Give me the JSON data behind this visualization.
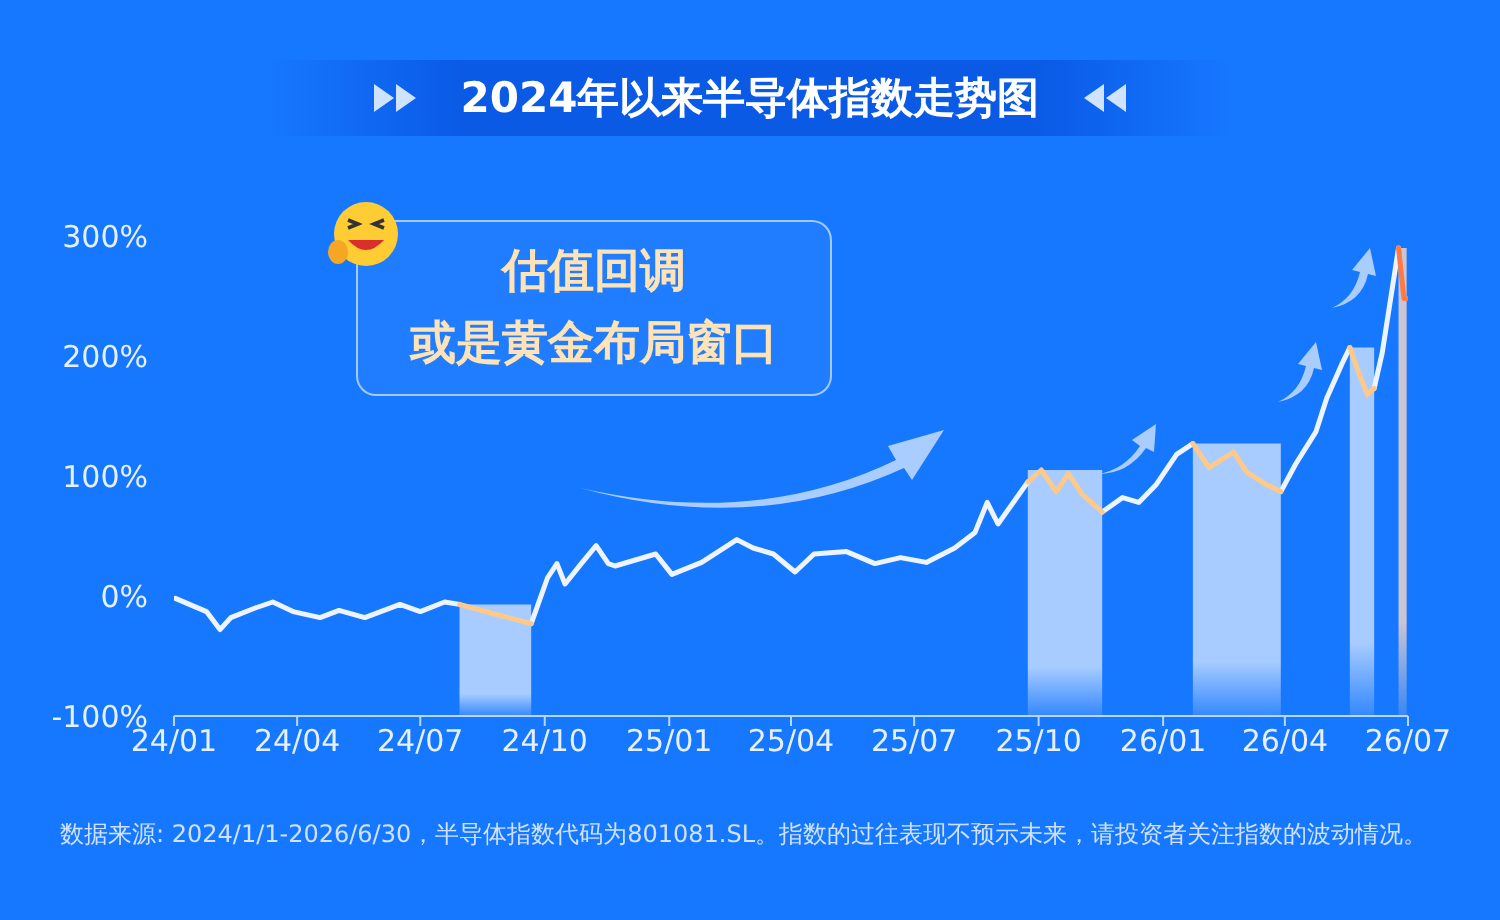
{
  "chart_data": {
    "type": "line",
    "title": "2024年以来半导体指数走势图",
    "annotations": [
      "估值回调",
      "或是黄金布局窗口",
      "数据来源: 2024/1/1-2026/6/30，半导体指数代码为801081.SL。指数的过往表现不预示未来，请投资者关注指数的波动情况。"
    ],
    "x": [
      "2024-01-02",
      "2024-01-25",
      "2024-02-04",
      "2024-02-12",
      "2024-03-01",
      "2024-03-14",
      "2024-03-29",
      "2024-04-18",
      "2024-05-02",
      "2024-05-21",
      "2024-06-16",
      "2024-07-01",
      "2024-07-19",
      "2024-07-30",
      "2024-08-25",
      "2024-09-21",
      "2024-10-03",
      "2024-10-10",
      "2024-10-16",
      "2024-10-28",
      "2024-11-08",
      "2024-11-17",
      "2024-11-22",
      "2024-12-22",
      "2025-01-03",
      "2025-01-25",
      "2025-02-20",
      "2025-03-04",
      "2025-03-19",
      "2025-04-04",
      "2025-04-18",
      "2025-05-12",
      "2025-06-02",
      "2025-06-21",
      "2025-07-10",
      "2025-07-31",
      "2025-08-15",
      "2025-08-24",
      "2025-09-01",
      "2025-09-23",
      "2025-10-03",
      "2025-10-14",
      "2025-10-23",
      "2025-11-02",
      "2025-11-17",
      "2025-12-02",
      "2025-12-14",
      "2025-12-27",
      "2026-01-11",
      "2026-01-23",
      "2026-02-04",
      "2026-02-22",
      "2026-03-04",
      "2026-03-18",
      "2026-03-29",
      "2026-04-09",
      "2026-04-24",
      "2026-05-02",
      "2026-05-13",
      "2026-05-19",
      "2026-05-27",
      "2026-06-01",
      "2026-06-06",
      "2026-06-12",
      "2026-06-16",
      "2026-06-24",
      "2026-06-28",
      "2026-06-30"
    ],
    "series": [
      {
        "color": "#eef4ff",
        "values": [
          -2,
          -13,
          -28,
          -18,
          -10,
          -5,
          -13,
          -18,
          -12,
          -18,
          -7,
          -13,
          -5,
          -7,
          null,
          -23,
          15,
          27,
          10,
          27,
          42,
          27,
          25,
          35,
          18,
          28,
          47,
          40,
          35,
          20,
          35,
          37,
          27,
          32,
          28,
          40,
          53,
          78,
          60,
          95,
          null,
          null,
          null,
          null,
          70,
          82,
          78,
          93,
          118,
          127,
          null,
          null,
          null,
          null,
          87,
          110,
          137,
          165,
          193,
          207,
          null,
          null,
          173,
          203,
          232,
          290,
          null,
          null
        ]
      },
      {
        "color": "#ffc98a",
        "values": [
          null,
          null,
          null,
          null,
          null,
          null,
          null,
          null,
          null,
          null,
          null,
          null,
          null,
          -7,
          -15,
          -23,
          null,
          null,
          null,
          null,
          null,
          null,
          null,
          null,
          null,
          null,
          null,
          null,
          null,
          null,
          null,
          null,
          null,
          null,
          null,
          null,
          null,
          null,
          null,
          95,
          105,
          87,
          102,
          85,
          70,
          null,
          null,
          null,
          null,
          127,
          107,
          120,
          103,
          93,
          87,
          null,
          null,
          null,
          null,
          207,
          182,
          168,
          173,
          null,
          null,
          null,
          null,
          null
        ]
      },
      {
        "color": "#ff7a45",
        "values": [
          null,
          null,
          null,
          null,
          null,
          null,
          null,
          null,
          null,
          null,
          null,
          null,
          null,
          null,
          null,
          null,
          null,
          null,
          null,
          null,
          null,
          null,
          null,
          null,
          null,
          null,
          null,
          null,
          null,
          null,
          null,
          null,
          null,
          null,
          null,
          null,
          null,
          null,
          null,
          null,
          null,
          null,
          null,
          null,
          null,
          null,
          null,
          null,
          null,
          null,
          null,
          null,
          null,
          null,
          null,
          null,
          null,
          null,
          null,
          null,
          null,
          null,
          null,
          null,
          null,
          290,
          248,
          248
        ]
      }
    ],
    "bands": [
      {
        "axis": "x",
        "from": "2024-07-30",
        "to": "2024-09-21",
        "color": "#a8ccff"
      },
      {
        "axis": "x",
        "from": "2025-09-23",
        "to": "2025-11-17",
        "color": "#a8ccff"
      },
      {
        "axis": "x",
        "from": "2026-01-23",
        "to": "2026-03-29",
        "color": "#a8ccff"
      },
      {
        "axis": "x",
        "from": "2026-05-19",
        "to": "2026-06-06",
        "color": "#a8ccff"
      },
      {
        "axis": "x",
        "from": "2026-06-24",
        "to": "2026-06-30",
        "color": "#c9c5d3"
      }
    ],
    "xlim": [
      "2024-01-01",
      "2026-07-01"
    ],
    "xticks": [
      {
        "value": "2024-01-01",
        "label": "24/01"
      },
      {
        "value": "2024-04-01",
        "label": "24/04"
      },
      {
        "value": "2024-07-01",
        "label": "24/07"
      },
      {
        "value": "2024-10-01",
        "label": "24/10"
      },
      {
        "value": "2025-01-01",
        "label": "25/01"
      },
      {
        "value": "2025-04-01",
        "label": "25/04"
      },
      {
        "value": "2025-07-01",
        "label": "25/07"
      },
      {
        "value": "2025-10-01",
        "label": "25/10"
      },
      {
        "value": "2026-01-01",
        "label": "26/01"
      },
      {
        "value": "2026-04-01",
        "label": "26/04"
      },
      {
        "value": "2026-07-01",
        "label": "26/07"
      }
    ],
    "ylim": [
      -100,
      300
    ],
    "yticks": [
      {
        "value": -100,
        "label": "-100%"
      },
      {
        "value": 0,
        "label": "0%"
      },
      {
        "value": 100,
        "label": "100%"
      },
      {
        "value": 200,
        "label": "200%"
      },
      {
        "value": 300,
        "label": "300%"
      }
    ],
    "grid": false,
    "legend": false,
    "marker": "none",
    "line_style": "solid"
  }
}
